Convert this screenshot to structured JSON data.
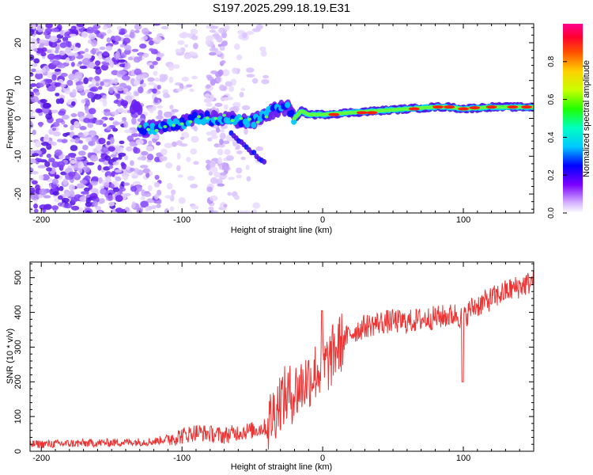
{
  "title": "S197.2025.299.18.19.E31",
  "chart_data": [
    {
      "type": "heatmap",
      "xlabel": "Height of straight line (km)",
      "ylabel": "Frequency (Hz)",
      "xlim": [
        -208,
        150
      ],
      "ylim": [
        -25,
        25
      ],
      "xticks": [
        -200,
        -100,
        0,
        100
      ],
      "yticks": [
        -20,
        -10,
        0,
        10,
        20
      ],
      "colorbar": {
        "label": "Normalized spectral amplitude",
        "range": [
          0,
          1
        ],
        "ticks": [
          "0.0",
          "0.2",
          "0.4",
          "0.6",
          "0.8"
        ]
      },
      "ridge": {
        "description_points_x": [
          -130,
          -110,
          -90,
          -70,
          -50,
          -35,
          -25,
          -20,
          -15,
          -10,
          0,
          20,
          40,
          60,
          80,
          90,
          100,
          120,
          150
        ],
        "frequency_hz": [
          -3,
          -2,
          0,
          0,
          -1,
          2,
          3,
          0,
          2,
          1,
          1,
          1.5,
          2,
          2.5,
          3,
          3,
          2.5,
          3,
          3
        ]
      }
    },
    {
      "type": "line",
      "xlabel": "Height of straight line (km)",
      "ylabel": "SNR (10 * v/v)",
      "xlim": [
        -208,
        150
      ],
      "ylim": [
        0,
        545
      ],
      "xticks": [
        -200,
        -100,
        0,
        100
      ],
      "yticks": [
        0,
        100,
        200,
        300,
        400,
        500
      ],
      "series": [
        {
          "name": "SNR",
          "color": "#ee3333",
          "x": [
            -208,
            -180,
            -150,
            -120,
            -100,
            -90,
            -80,
            -70,
            -60,
            -50,
            -40,
            -35,
            -30,
            -25,
            -20,
            -15,
            -10,
            -5,
            0,
            5,
            10,
            15,
            20,
            25,
            30,
            40,
            50,
            60,
            70,
            80,
            90,
            95,
            100,
            105,
            110,
            120,
            130,
            140,
            150
          ],
          "y": [
            20,
            22,
            25,
            28,
            45,
            55,
            50,
            45,
            55,
            60,
            70,
            110,
            150,
            160,
            170,
            190,
            210,
            230,
            240,
            260,
            300,
            320,
            340,
            350,
            360,
            370,
            375,
            372,
            380,
            385,
            390,
            395,
            380,
            410,
            420,
            440,
            460,
            475,
            490
          ]
        }
      ]
    }
  ]
}
